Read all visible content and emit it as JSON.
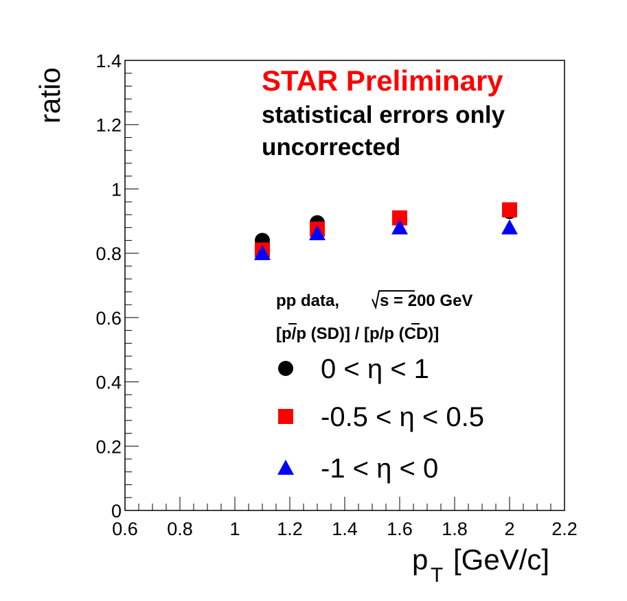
{
  "chart_data": {
    "type": "scatter",
    "title": "",
    "xlabel": "p",
    "xlabel_sub": "T",
    "xlabel_unit": "[GeV/c]",
    "ylabel": "ratio",
    "xlim": [
      0.6,
      2.2
    ],
    "ylim": [
      0,
      1.4
    ],
    "x_ticks": [
      "0.6",
      "0.8",
      "1",
      "1.2",
      "1.4",
      "1.6",
      "1.8",
      "2",
      "2.2"
    ],
    "y_ticks": [
      "0",
      "0.2",
      "0.4",
      "0.6",
      "0.8",
      "1",
      "1.2",
      "1.4"
    ],
    "grid": false,
    "annotations": {
      "preliminary": "STAR Preliminary",
      "errors": "statistical errors only",
      "uncorrected": "uncorrected"
    },
    "legend": {
      "placement": "bottom-right",
      "header_line1_pre": "pp data,",
      "header_line1_post": "s = 200 GeV",
      "header_line2": "[p/p (SD)] / [p/p (CD)]"
    },
    "series": [
      {
        "name": "0 < η < 1",
        "marker": "circle",
        "color": "#000000",
        "x": [
          1.1,
          1.3,
          1.6,
          2.0
        ],
        "y": [
          0.84,
          0.895,
          0.91,
          0.93
        ]
      },
      {
        "name": "-0.5 < η < 0.5",
        "marker": "square",
        "color": "#ff0000",
        "x": [
          1.1,
          1.3,
          1.6,
          2.0
        ],
        "y": [
          0.81,
          0.875,
          0.91,
          0.935
        ]
      },
      {
        "name": "-1 < η < 0",
        "marker": "triangle",
        "color": "#0000ff",
        "x": [
          1.1,
          1.3,
          1.6,
          2.0
        ],
        "y": [
          0.8,
          0.862,
          0.88,
          0.88
        ]
      }
    ]
  }
}
